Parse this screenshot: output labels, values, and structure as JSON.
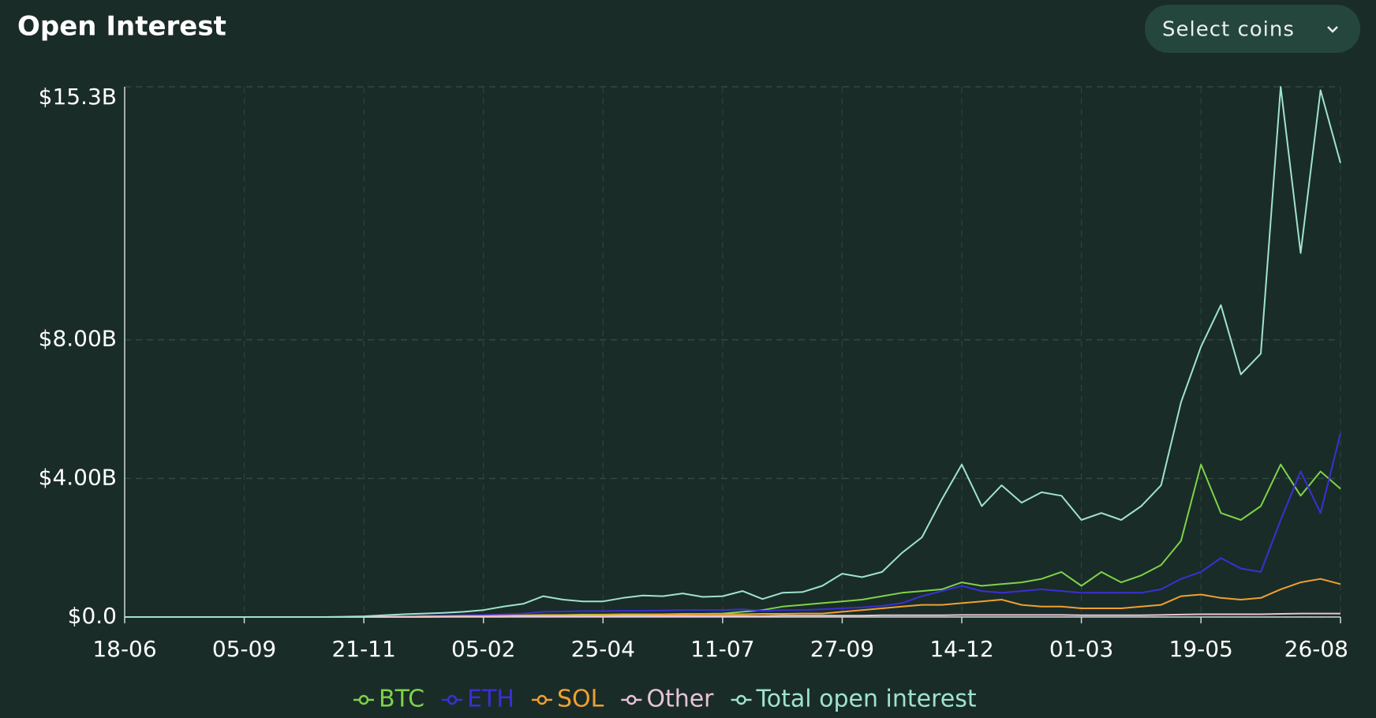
{
  "controls": {
    "select_coins": "Select coins"
  },
  "chart_data": {
    "type": "line",
    "title": "Open Interest",
    "categories": [
      "18-06",
      null,
      null,
      null,
      null,
      null,
      "05-09",
      null,
      null,
      null,
      null,
      null,
      "21-11",
      null,
      null,
      null,
      null,
      null,
      "05-02",
      null,
      null,
      null,
      null,
      null,
      "25-04",
      null,
      null,
      null,
      null,
      null,
      "11-07",
      null,
      null,
      null,
      null,
      null,
      "27-09",
      null,
      null,
      null,
      null,
      null,
      "14-12",
      null,
      null,
      null,
      null,
      null,
      "01-03",
      null,
      null,
      null,
      null,
      null,
      "19-05",
      null,
      null,
      null,
      null,
      null,
      null,
      "26-08"
    ],
    "ylim": [
      0,
      15.3
    ],
    "yticks": [
      {
        "value": 0,
        "label": "$0.0"
      },
      {
        "value": 4,
        "label": "$4.00B"
      },
      {
        "value": 8,
        "label": "$8.00B"
      },
      {
        "value": 15.3,
        "label": "$15.3B"
      }
    ],
    "grid": true,
    "legend": "bottom",
    "series": [
      {
        "name": "BTC",
        "color": "#7ed34a",
        "values": [
          0,
          0,
          0,
          0,
          0,
          0,
          0,
          0,
          0,
          0,
          0,
          0,
          0,
          0.02,
          0.02,
          0.03,
          0.03,
          0.04,
          0.04,
          0.05,
          0.05,
          0.06,
          0.06,
          0.07,
          0.07,
          0.08,
          0.08,
          0.08,
          0.09,
          0.09,
          0.1,
          0.15,
          0.2,
          0.3,
          0.35,
          0.4,
          0.45,
          0.5,
          0.6,
          0.7,
          0.75,
          0.8,
          1.0,
          0.9,
          0.95,
          1.0,
          1.1,
          1.3,
          0.9,
          1.3,
          1.0,
          1.2,
          1.5,
          2.2,
          4.4,
          3.0,
          2.8,
          3.2,
          4.4,
          3.5,
          4.2,
          3.7
        ]
      },
      {
        "name": "ETH",
        "color": "#3b2fd6",
        "values": [
          0,
          0,
          0,
          0,
          0,
          0,
          0,
          0,
          0,
          0,
          0,
          0,
          0,
          0.01,
          0.02,
          0.03,
          0.04,
          0.05,
          0.06,
          0.08,
          0.1,
          0.15,
          0.16,
          0.17,
          0.17,
          0.18,
          0.18,
          0.19,
          0.2,
          0.2,
          0.2,
          0.22,
          0.18,
          0.2,
          0.2,
          0.22,
          0.25,
          0.28,
          0.32,
          0.4,
          0.6,
          0.75,
          0.9,
          0.75,
          0.7,
          0.75,
          0.8,
          0.75,
          0.7,
          0.7,
          0.7,
          0.7,
          0.8,
          1.1,
          1.3,
          1.7,
          1.4,
          1.3,
          2.8,
          4.2,
          3.0,
          5.3
        ]
      },
      {
        "name": "SOL",
        "color": "#f0a030",
        "values": [
          0,
          0,
          0,
          0,
          0,
          0,
          0,
          0,
          0,
          0,
          0,
          0,
          0,
          0.01,
          0.01,
          0.02,
          0.02,
          0.03,
          0.03,
          0.04,
          0.04,
          0.05,
          0.05,
          0.05,
          0.06,
          0.06,
          0.06,
          0.07,
          0.07,
          0.08,
          0.08,
          0.08,
          0.09,
          0.09,
          0.1,
          0.1,
          0.15,
          0.2,
          0.25,
          0.3,
          0.35,
          0.35,
          0.4,
          0.45,
          0.5,
          0.35,
          0.3,
          0.3,
          0.25,
          0.25,
          0.25,
          0.3,
          0.35,
          0.6,
          0.65,
          0.55,
          0.5,
          0.55,
          0.8,
          1.0,
          1.1,
          0.95
        ]
      },
      {
        "name": "Other",
        "color": "#e8c3d8",
        "values": [
          0,
          0,
          0,
          0,
          0,
          0,
          0,
          0,
          0,
          0,
          0,
          0,
          0,
          0,
          0,
          0,
          0.01,
          0.01,
          0.01,
          0.01,
          0.02,
          0.02,
          0.02,
          0.02,
          0.02,
          0.03,
          0.03,
          0.03,
          0.03,
          0.03,
          0.03,
          0.03,
          0.03,
          0.04,
          0.04,
          0.04,
          0.04,
          0.04,
          0.05,
          0.05,
          0.05,
          0.05,
          0.06,
          0.06,
          0.06,
          0.06,
          0.06,
          0.06,
          0.05,
          0.05,
          0.05,
          0.05,
          0.06,
          0.07,
          0.08,
          0.08,
          0.08,
          0.08,
          0.09,
          0.1,
          0.1,
          0.1
        ]
      },
      {
        "name": "Total open interest",
        "color": "#9fe3cc",
        "values": [
          0,
          0,
          0,
          0,
          0,
          0,
          0,
          0,
          0,
          0,
          0,
          0.01,
          0.02,
          0.05,
          0.08,
          0.1,
          0.12,
          0.15,
          0.2,
          0.3,
          0.38,
          0.6,
          0.5,
          0.45,
          0.45,
          0.55,
          0.62,
          0.6,
          0.68,
          0.58,
          0.6,
          0.75,
          0.52,
          0.7,
          0.72,
          0.9,
          1.25,
          1.15,
          1.3,
          1.85,
          2.3,
          3.4,
          4.4,
          3.2,
          3.8,
          3.3,
          3.6,
          3.5,
          2.8,
          3.0,
          2.8,
          3.2,
          3.8,
          6.2,
          7.8,
          9.0,
          7.0,
          7.6,
          15.3,
          10.5,
          15.2,
          13.1
        ]
      }
    ]
  }
}
